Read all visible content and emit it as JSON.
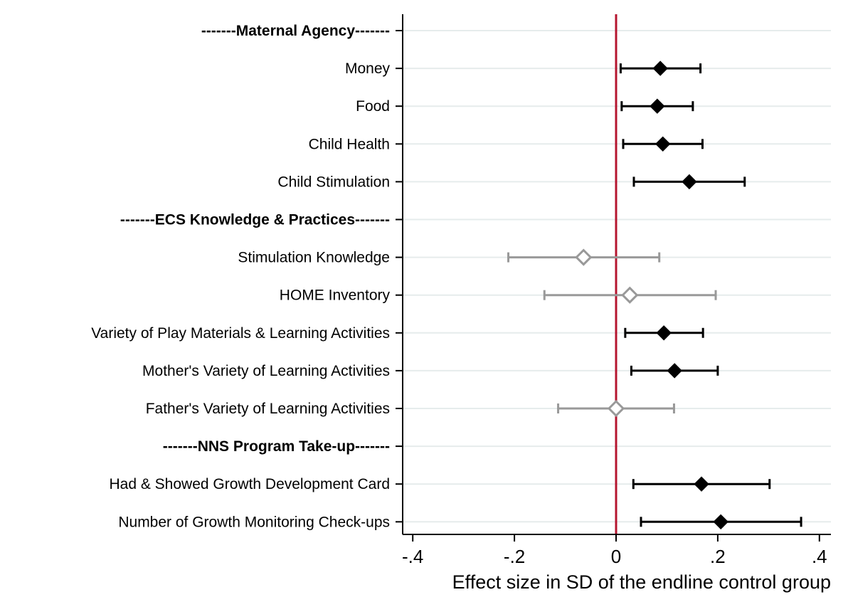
{
  "chart_data": {
    "type": "scatter",
    "subtype": "coefficient-plot",
    "title": "",
    "xlabel": "Effect size in SD of the endline control group",
    "ylabel": "",
    "xlim": [
      -0.43,
      0.43
    ],
    "xticks": [
      -0.4,
      -0.2,
      0,
      0.2,
      0.4
    ],
    "xtick_labels": [
      "-.4",
      "-.2",
      "0",
      ".2",
      ".4"
    ],
    "reference_line": {
      "x": 0,
      "color": "#b5152f"
    },
    "grid": "horizontal",
    "legend": "none",
    "colors": {
      "significant": "#000000",
      "not_significant": "#999999",
      "grid": "#e6ecec"
    },
    "rows": [
      {
        "label": "-------Maternal Agency-------",
        "header": true
      },
      {
        "label": "Money",
        "estimate": 0.087,
        "ci_low": 0.009,
        "ci_high": 0.166,
        "significant": true
      },
      {
        "label": "Food",
        "estimate": 0.081,
        "ci_low": 0.011,
        "ci_high": 0.151,
        "significant": true
      },
      {
        "label": "Child Health",
        "estimate": 0.092,
        "ci_low": 0.014,
        "ci_high": 0.17,
        "significant": true
      },
      {
        "label": "Child Stimulation",
        "estimate": 0.144,
        "ci_low": 0.035,
        "ci_high": 0.253,
        "significant": true
      },
      {
        "label": "-------ECS Knowledge & Practices-------",
        "header": true
      },
      {
        "label": "Stimulation Knowledge",
        "estimate": -0.064,
        "ci_low": -0.212,
        "ci_high": 0.085,
        "significant": false
      },
      {
        "label": "HOME Inventory",
        "estimate": 0.027,
        "ci_low": -0.141,
        "ci_high": 0.196,
        "significant": false
      },
      {
        "label": "Variety of Play Materials & Learning Activities",
        "estimate": 0.094,
        "ci_low": 0.018,
        "ci_high": 0.171,
        "significant": true
      },
      {
        "label": "Mother's Variety of Learning Activities",
        "estimate": 0.115,
        "ci_low": 0.03,
        "ci_high": 0.2,
        "significant": true
      },
      {
        "label": "Father's Variety of Learning Activities",
        "estimate": 0.0,
        "ci_low": -0.114,
        "ci_high": 0.114,
        "significant": false
      },
      {
        "label": "-------NNS Program Take-up-------",
        "header": true
      },
      {
        "label": "Had & Showed Growth Development Card",
        "estimate": 0.168,
        "ci_low": 0.034,
        "ci_high": 0.302,
        "significant": true
      },
      {
        "label": "Number of Growth Monitoring Check-ups",
        "estimate": 0.206,
        "ci_low": 0.049,
        "ci_high": 0.364,
        "significant": true
      }
    ]
  }
}
